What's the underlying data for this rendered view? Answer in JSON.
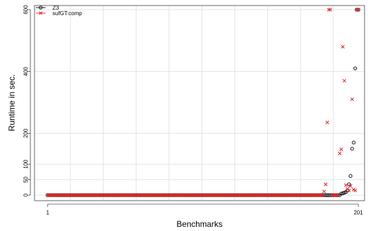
{
  "chart_data": {
    "type": "scatter",
    "title": "",
    "xlabel": "Benchmarks",
    "ylabel": "Runtime in sec.",
    "xlim": [
      1,
      201
    ],
    "ylim": [
      0,
      600
    ],
    "x_ticks": [
      "1",
      "201"
    ],
    "y_ticks": [
      "0",
      "50",
      "100",
      "200",
      "400",
      "600"
    ],
    "grid": true,
    "legend_position": "top-left",
    "n_benchmarks": 201,
    "series": [
      {
        "name": "Z3",
        "marker": "circle",
        "color": "#000000",
        "baseline_value": 0,
        "outliers": [
          {
            "x": 190,
            "y": 5
          },
          {
            "x": 191,
            "y": 6
          },
          {
            "x": 192,
            "y": 8
          },
          {
            "x": 193,
            "y": 10
          },
          {
            "x": 194,
            "y": 15
          },
          {
            "x": 195,
            "y": 35
          },
          {
            "x": 196,
            "y": 62
          },
          {
            "x": 197,
            "y": 150
          },
          {
            "x": 198,
            "y": 170
          },
          {
            "x": 199,
            "y": 410
          },
          {
            "x": 200,
            "y": 600
          },
          {
            "x": 201,
            "y": 600
          }
        ]
      },
      {
        "name": "sufGT:comp",
        "marker": "cross",
        "color": "#e02020",
        "baseline_value": 0,
        "outliers": [
          {
            "x": 179,
            "y": 12
          },
          {
            "x": 180,
            "y": 35
          },
          {
            "x": 181,
            "y": 235
          },
          {
            "x": 182,
            "y": 600
          },
          {
            "x": 183,
            "y": 600
          },
          {
            "x": 189,
            "y": 135
          },
          {
            "x": 190,
            "y": 148
          },
          {
            "x": 191,
            "y": 480
          },
          {
            "x": 192,
            "y": 370
          },
          {
            "x": 193,
            "y": 32
          },
          {
            "x": 194,
            "y": 20
          },
          {
            "x": 195,
            "y": 15
          },
          {
            "x": 196,
            "y": 30
          },
          {
            "x": 197,
            "y": 310
          },
          {
            "x": 198,
            "y": 18
          },
          {
            "x": 199,
            "y": 15
          },
          {
            "x": 200,
            "y": 600
          },
          {
            "x": 201,
            "y": 600
          }
        ]
      }
    ]
  }
}
